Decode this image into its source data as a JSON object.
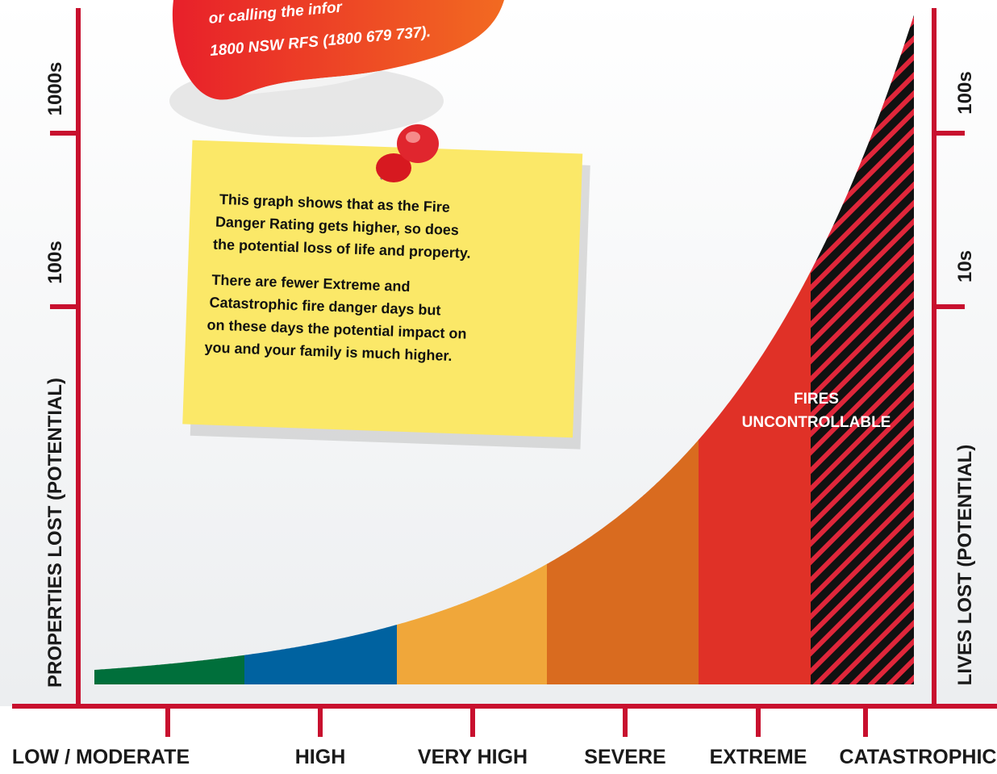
{
  "sticker": {
    "lines": [
      "or calling the infor",
      "1800 NSW RFS (1800 679 737)."
    ]
  },
  "left_axis": {
    "title": "PROPERTIES LOST (POTENTIAL)",
    "ticks": [
      "1000s",
      "100s"
    ]
  },
  "right_axis": {
    "title": "LIVES LOST (POTENTIAL)",
    "ticks": [
      "100s",
      "10s"
    ]
  },
  "categories": [
    "LOW / MODERATE",
    "HIGH",
    "VERY HIGH",
    "SEVERE",
    "EXTREME",
    "CATASTROPHIC"
  ],
  "annotation": [
    "FIRES",
    "UNCONTROLLABLE"
  ],
  "note": {
    "paragraphs": [
      [
        "This graph shows that as the Fire",
        "Danger Rating gets higher, so does",
        "the potential loss of life and property."
      ],
      [
        "There are fewer Extreme and",
        "Catastrophic fire danger days but",
        "on these days the potential impact on",
        "you and your family is much higher."
      ]
    ]
  }
}
